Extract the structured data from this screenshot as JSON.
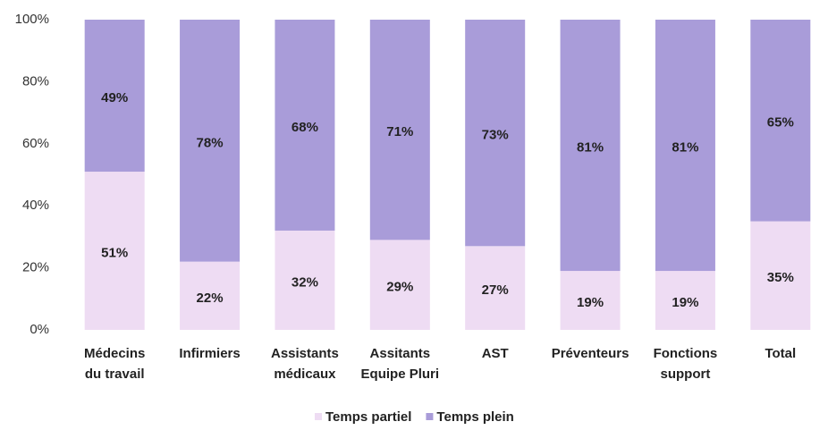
{
  "chart_data": {
    "type": "stacked_bar",
    "categories": [
      [
        "Médecins",
        "du travail"
      ],
      [
        "Infirmiers"
      ],
      [
        "Assistants",
        "médicaux"
      ],
      [
        "Assitants",
        "Equipe Pluri"
      ],
      [
        "AST"
      ],
      [
        "Préventeurs"
      ],
      [
        "Fonctions",
        "support"
      ],
      [
        "Total"
      ]
    ],
    "series": [
      {
        "name": "Temps partiel",
        "color": "#eedcf3",
        "values": [
          51,
          22,
          32,
          29,
          27,
          19,
          19,
          35
        ],
        "value_labels": [
          "51%",
          "22%",
          "32%",
          "29%",
          "27%",
          "19%",
          "19%",
          "35%"
        ]
      },
      {
        "name": "Temps plein",
        "color": "#a99cd9",
        "values": [
          49,
          78,
          68,
          71,
          73,
          81,
          81,
          65
        ],
        "value_labels": [
          "49%",
          "78%",
          "68%",
          "71%",
          "73%",
          "81%",
          "81%",
          "65%"
        ]
      }
    ],
    "ylim": [
      0,
      100
    ],
    "yticks": [
      {
        "value": 0,
        "label": "0%"
      },
      {
        "value": 20,
        "label": "20%"
      },
      {
        "value": 40,
        "label": "40%"
      },
      {
        "value": 60,
        "label": "60%"
      },
      {
        "value": 80,
        "label": "80%"
      },
      {
        "value": 100,
        "label": "100%"
      }
    ],
    "legend": "bottom"
  }
}
